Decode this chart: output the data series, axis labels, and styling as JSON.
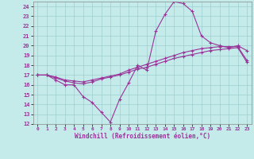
{
  "xlabel": "Windchill (Refroidissement éolien,°C)",
  "xlim": [
    -0.5,
    23.5
  ],
  "ylim": [
    12,
    24.5
  ],
  "yticks": [
    12,
    13,
    14,
    15,
    16,
    17,
    18,
    19,
    20,
    21,
    22,
    23,
    24
  ],
  "xticks": [
    0,
    1,
    2,
    3,
    4,
    5,
    6,
    7,
    8,
    9,
    10,
    11,
    12,
    13,
    14,
    15,
    16,
    17,
    18,
    19,
    20,
    21,
    22,
    23
  ],
  "background_color": "#c5eaea",
  "grid_color": "#9ecece",
  "line_color": "#993399",
  "line1_y": [
    17.0,
    17.0,
    16.5,
    16.0,
    16.0,
    14.8,
    14.2,
    13.2,
    12.2,
    14.5,
    16.2,
    18.0,
    17.5,
    21.5,
    23.2,
    24.5,
    24.3,
    23.5,
    21.0,
    20.3,
    20.0,
    19.8,
    20.0,
    19.5
  ],
  "line2_y": [
    17.0,
    17.0,
    16.8,
    16.5,
    16.4,
    16.3,
    16.5,
    16.7,
    16.9,
    17.1,
    17.5,
    17.8,
    18.1,
    18.4,
    18.7,
    19.0,
    19.3,
    19.5,
    19.7,
    19.8,
    19.9,
    19.9,
    19.9,
    18.5
  ],
  "line3_y": [
    17.0,
    17.0,
    16.7,
    16.4,
    16.2,
    16.1,
    16.3,
    16.6,
    16.8,
    17.0,
    17.3,
    17.6,
    17.8,
    18.1,
    18.4,
    18.7,
    18.9,
    19.1,
    19.3,
    19.5,
    19.6,
    19.7,
    19.8,
    18.3
  ],
  "marker": "+",
  "marker_size": 3.5,
  "line_width": 0.8
}
